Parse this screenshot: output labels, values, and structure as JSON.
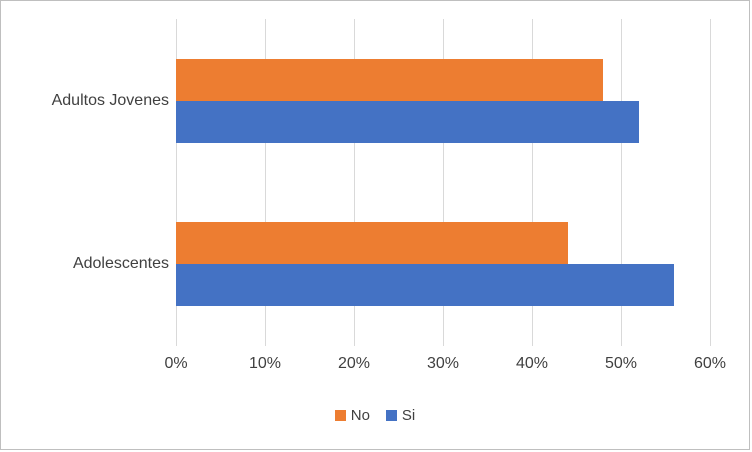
{
  "chart_data": {
    "type": "bar",
    "orientation": "horizontal",
    "title": "",
    "xlabel": "",
    "ylabel": "",
    "categories": [
      "Adultos Jovenes",
      "Adolescentes"
    ],
    "series": [
      {
        "name": "No",
        "color": "#ED7D31",
        "values": [
          48,
          44
        ]
      },
      {
        "name": "Si",
        "color": "#4472C4",
        "values": [
          52,
          56
        ]
      }
    ],
    "xlim": [
      0,
      60
    ],
    "x_ticks": [
      {
        "value": 0,
        "label": "0%"
      },
      {
        "value": 10,
        "label": "10%"
      },
      {
        "value": 20,
        "label": "20%"
      },
      {
        "value": 30,
        "label": "30%"
      },
      {
        "value": 40,
        "label": "40%"
      },
      {
        "value": 50,
        "label": "50%"
      },
      {
        "value": 60,
        "label": "60%"
      }
    ],
    "grid": true,
    "legend_position": "bottom"
  }
}
